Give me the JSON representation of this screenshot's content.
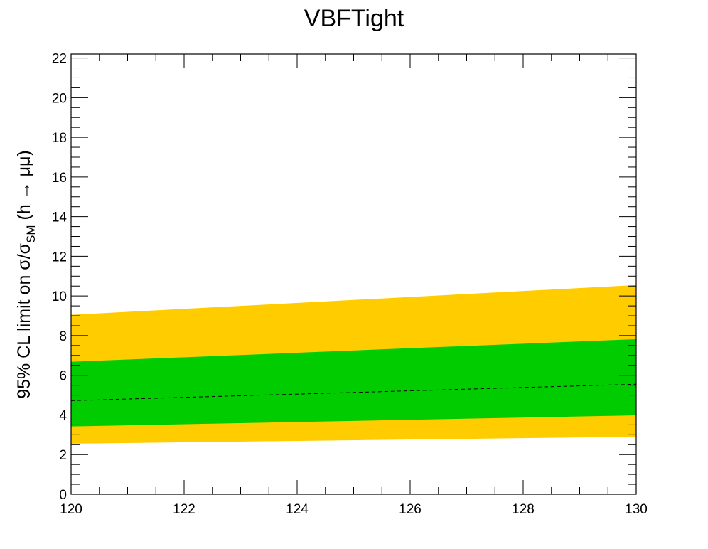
{
  "chart_data": {
    "type": "area",
    "title": "VBFTight",
    "xlabel": "",
    "ylabel": {
      "prefix": "95% CL limit on σ/σ",
      "subscript": "SM",
      "suffix": " (h → μμ)"
    },
    "xlim": [
      120,
      130
    ],
    "ylim": [
      0,
      22.2
    ],
    "x_ticks": [
      120,
      122,
      124,
      126,
      128,
      130
    ],
    "y_ticks": [
      0,
      2,
      4,
      6,
      8,
      10,
      12,
      14,
      16,
      18,
      20,
      22
    ],
    "grid": false,
    "x": [
      120,
      130
    ],
    "bands": [
      {
        "level": "2sigma",
        "color": "#ffcc00",
        "lower": [
          2.55,
          2.9
        ],
        "upper": [
          9.05,
          10.55
        ]
      },
      {
        "level": "1sigma",
        "color": "#00cc00",
        "lower": [
          3.42,
          3.98
        ],
        "upper": [
          6.68,
          7.82
        ]
      }
    ],
    "expected": {
      "values": [
        4.72,
        5.55
      ],
      "color": "#000000",
      "style": "dashed"
    }
  }
}
